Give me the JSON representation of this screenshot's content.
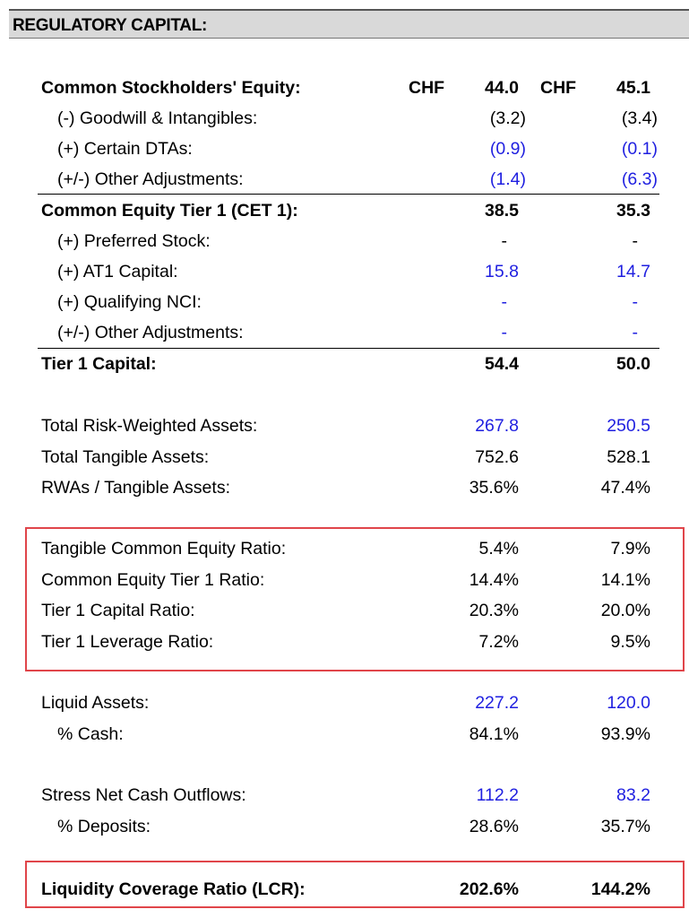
{
  "title": "REGULATORY CAPITAL:",
  "colors": {
    "input_blue": "#1f1fe0",
    "highlight_box": "#e0454a",
    "header_bg": "#d9d9d9"
  },
  "rows": [
    {
      "label": "Common Stockholders' Equity:",
      "bold": true,
      "currency": "CHF",
      "v1": "44.0",
      "v2": "45.1"
    },
    {
      "label": "(-) Goodwill & Intangibles:",
      "indent": true,
      "v1": "(3.2)",
      "v2": "(3.4)"
    },
    {
      "label": "(+) Certain DTAs:",
      "indent": true,
      "blue": true,
      "v1": "(0.9)",
      "v2": "(0.1)"
    },
    {
      "label": "(+/-) Other Adjustments:",
      "indent": true,
      "blue": true,
      "v1": "(1.4)",
      "v2": "(6.3)"
    },
    {
      "label": "Common Equity Tier 1 (CET 1):",
      "bold": true,
      "v1": "38.5",
      "v2": "35.3"
    },
    {
      "label": "(+) Preferred Stock:",
      "indent": true,
      "v1": "-",
      "v2": "-"
    },
    {
      "label": "(+) AT1 Capital:",
      "indent": true,
      "blue": true,
      "v1": "15.8",
      "v2": "14.7"
    },
    {
      "label": "(+) Qualifying NCI:",
      "indent": true,
      "blue": true,
      "v1": "-",
      "v2": "-"
    },
    {
      "label": "(+/-) Other Adjustments:",
      "indent": true,
      "blue": true,
      "v1": "-",
      "v2": "-"
    },
    {
      "label": "Tier 1 Capital:",
      "bold": true,
      "v1": "54.4",
      "v2": "50.0"
    },
    {
      "label": "Total Risk-Weighted Assets:",
      "blue": true,
      "v1": "267.8",
      "v2": "250.5"
    },
    {
      "label": "Total Tangible Assets:",
      "v1": "752.6",
      "v2": "528.1"
    },
    {
      "label": "RWAs / Tangible Assets:",
      "v1": "35.6%",
      "v2": "47.4%"
    },
    {
      "label": "Tangible Common Equity Ratio:",
      "v1": "5.4%",
      "v2": "7.9%"
    },
    {
      "label": "Common Equity Tier 1 Ratio:",
      "v1": "14.4%",
      "v2": "14.1%"
    },
    {
      "label": "Tier 1 Capital Ratio:",
      "v1": "20.3%",
      "v2": "20.0%"
    },
    {
      "label": "Tier 1 Leverage Ratio:",
      "v1": "7.2%",
      "v2": "9.5%"
    },
    {
      "label": "Liquid Assets:",
      "blue": true,
      "v1": "227.2",
      "v2": "120.0"
    },
    {
      "label": "% Cash:",
      "indent": true,
      "v1": "84.1%",
      "v2": "93.9%"
    },
    {
      "label": "Stress Net Cash Outflows:",
      "blue": true,
      "v1": "112.2",
      "v2": "83.2"
    },
    {
      "label": "% Deposits:",
      "indent": true,
      "v1": "28.6%",
      "v2": "35.7%"
    },
    {
      "label": "Liquidity Coverage Ratio (LCR):",
      "bold": true,
      "v1": "202.6%",
      "v2": "144.2%"
    }
  ]
}
